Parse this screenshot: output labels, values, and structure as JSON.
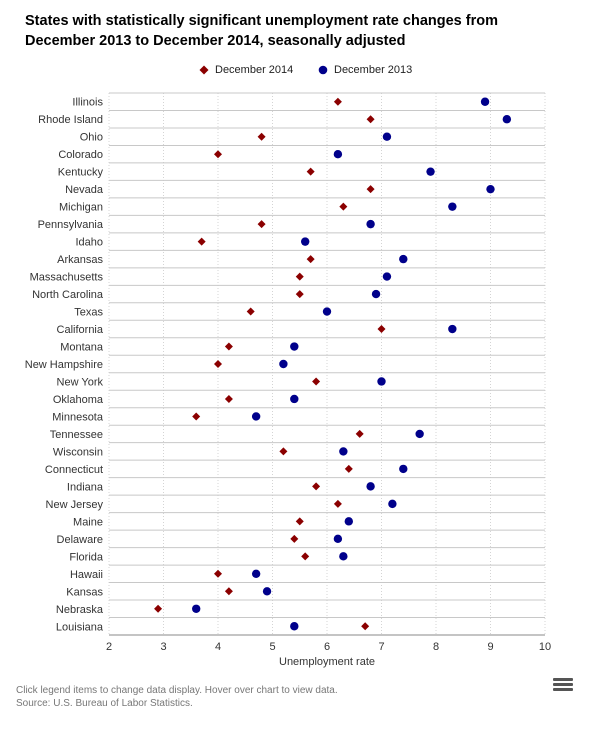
{
  "footer": {
    "note": "Click legend items to change data display. Hover over chart to view data.",
    "source": "Source: U.S. Bureau of Labor Statistics."
  },
  "colors": {
    "dec2014": "#8b0000",
    "dec2013": "#00008b",
    "grid": "#c8c8c8",
    "minor_grid": "#d4d4d4"
  },
  "icons": {
    "menu": "hamburger-menu-icon"
  },
  "chart_data": {
    "type": "scatter",
    "title": "States with statistically significant unemployment rate changes from December 2013 to December 2014, seasonally adjusted",
    "xlabel": "Unemployment rate",
    "ylabel": "",
    "xlim": [
      2,
      10
    ],
    "xticks": [
      "2",
      "3",
      "4",
      "5",
      "6",
      "7",
      "8",
      "9",
      "10"
    ],
    "grid": true,
    "legend_position": "top-center",
    "categories": [
      "Illinois",
      "Rhode Island",
      "Ohio",
      "Colorado",
      "Kentucky",
      "Nevada",
      "Michigan",
      "Pennsylvania",
      "Idaho",
      "Arkansas",
      "Massachusetts",
      "North Carolina",
      "Texas",
      "California",
      "Montana",
      "New Hampshire",
      "New York",
      "Oklahoma",
      "Minnesota",
      "Tennessee",
      "Wisconsin",
      "Connecticut",
      "Indiana",
      "New Jersey",
      "Maine",
      "Delaware",
      "Florida",
      "Hawaii",
      "Kansas",
      "Nebraska",
      "Louisiana"
    ],
    "series": [
      {
        "name": "December 2014",
        "marker": "diamond",
        "values": [
          6.2,
          6.8,
          4.8,
          4.0,
          5.7,
          6.8,
          6.3,
          4.8,
          3.7,
          5.7,
          5.5,
          5.5,
          4.6,
          7.0,
          4.2,
          4.0,
          5.8,
          4.2,
          3.6,
          6.6,
          5.2,
          6.4,
          5.8,
          6.2,
          5.5,
          5.4,
          5.6,
          4.0,
          4.2,
          2.9,
          6.7
        ]
      },
      {
        "name": "December 2013",
        "marker": "circle",
        "values": [
          8.9,
          9.3,
          7.1,
          6.2,
          7.9,
          9.0,
          8.3,
          6.8,
          5.6,
          7.4,
          7.1,
          6.9,
          6.0,
          8.3,
          5.4,
          5.2,
          7.0,
          5.4,
          4.7,
          7.7,
          6.3,
          7.4,
          6.8,
          7.2,
          6.4,
          6.2,
          6.3,
          4.7,
          4.9,
          3.6,
          5.4
        ]
      }
    ]
  }
}
